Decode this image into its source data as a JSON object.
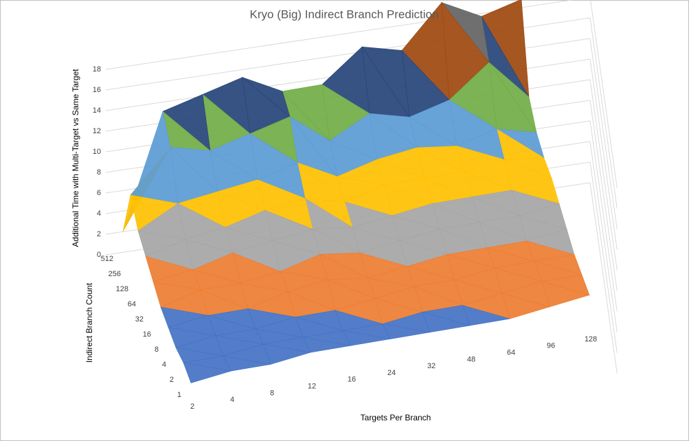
{
  "chart_data": {
    "type": "surface",
    "title": "Kryo (Big) Indirect Branch Prediction",
    "x_label": "Targets Per Branch",
    "y_label": "Indirect Branch Count",
    "z_label": "Additional Time with Multi-Target vs Same Target",
    "categories": [
      "2",
      "4",
      "8",
      "12",
      "16",
      "24",
      "32",
      "48",
      "64",
      "96",
      "128"
    ],
    "series": [
      {
        "name": "1",
        "values": [
          0.5,
          1,
          1,
          1.5,
          1.5,
          1.5,
          1.5,
          1.5,
          1.5,
          2,
          2.5
        ]
      },
      {
        "name": "2",
        "values": [
          1,
          1,
          1.5,
          1.5,
          1.5,
          1.5,
          2,
          2,
          2.5,
          3,
          3
        ]
      },
      {
        "name": "4",
        "values": [
          1,
          1.5,
          1.5,
          2,
          2,
          2.5,
          3,
          3,
          3.5,
          3.5,
          3.5
        ]
      },
      {
        "name": "8",
        "values": [
          1.5,
          2,
          2,
          3,
          3.5,
          3,
          3.5,
          4,
          4,
          4,
          4.5
        ]
      },
      {
        "name": "16",
        "values": [
          2,
          3,
          3,
          3.5,
          4.5,
          4,
          4.5,
          5,
          5,
          5,
          5.5
        ]
      },
      {
        "name": "32",
        "values": [
          3,
          3.5,
          4.5,
          5,
          5.5,
          5,
          5.5,
          6,
          6,
          6,
          6.5
        ]
      },
      {
        "name": "64",
        "values": [
          4,
          5,
          5.5,
          6.5,
          7,
          6,
          7,
          7,
          7,
          7.5,
          7
        ]
      },
      {
        "name": "128",
        "values": [
          5,
          7,
          7.5,
          8,
          9,
          7,
          8,
          8.5,
          8,
          9,
          8
        ]
      },
      {
        "name": "256",
        "values": [
          7,
          11,
          10,
          11,
          12,
          9,
          11,
          10,
          11,
          14,
          10
        ]
      },
      {
        "name": "512",
        "values": [
          2,
          13,
          14,
          15,
          13,
          13,
          16,
          15,
          19,
          17,
          18
        ]
      }
    ],
    "zlim": [
      0,
      18
    ],
    "zticks": [
      0,
      2,
      4,
      6,
      8,
      10,
      12,
      14,
      16,
      18
    ],
    "band_colors": [
      "#4472c4",
      "#ed7d31",
      "#a5a5a5",
      "#ffc000",
      "#5b9bd5",
      "#70ad47",
      "#264478",
      "#9e480e",
      "#636363",
      "#997300"
    ],
    "grid": true
  }
}
